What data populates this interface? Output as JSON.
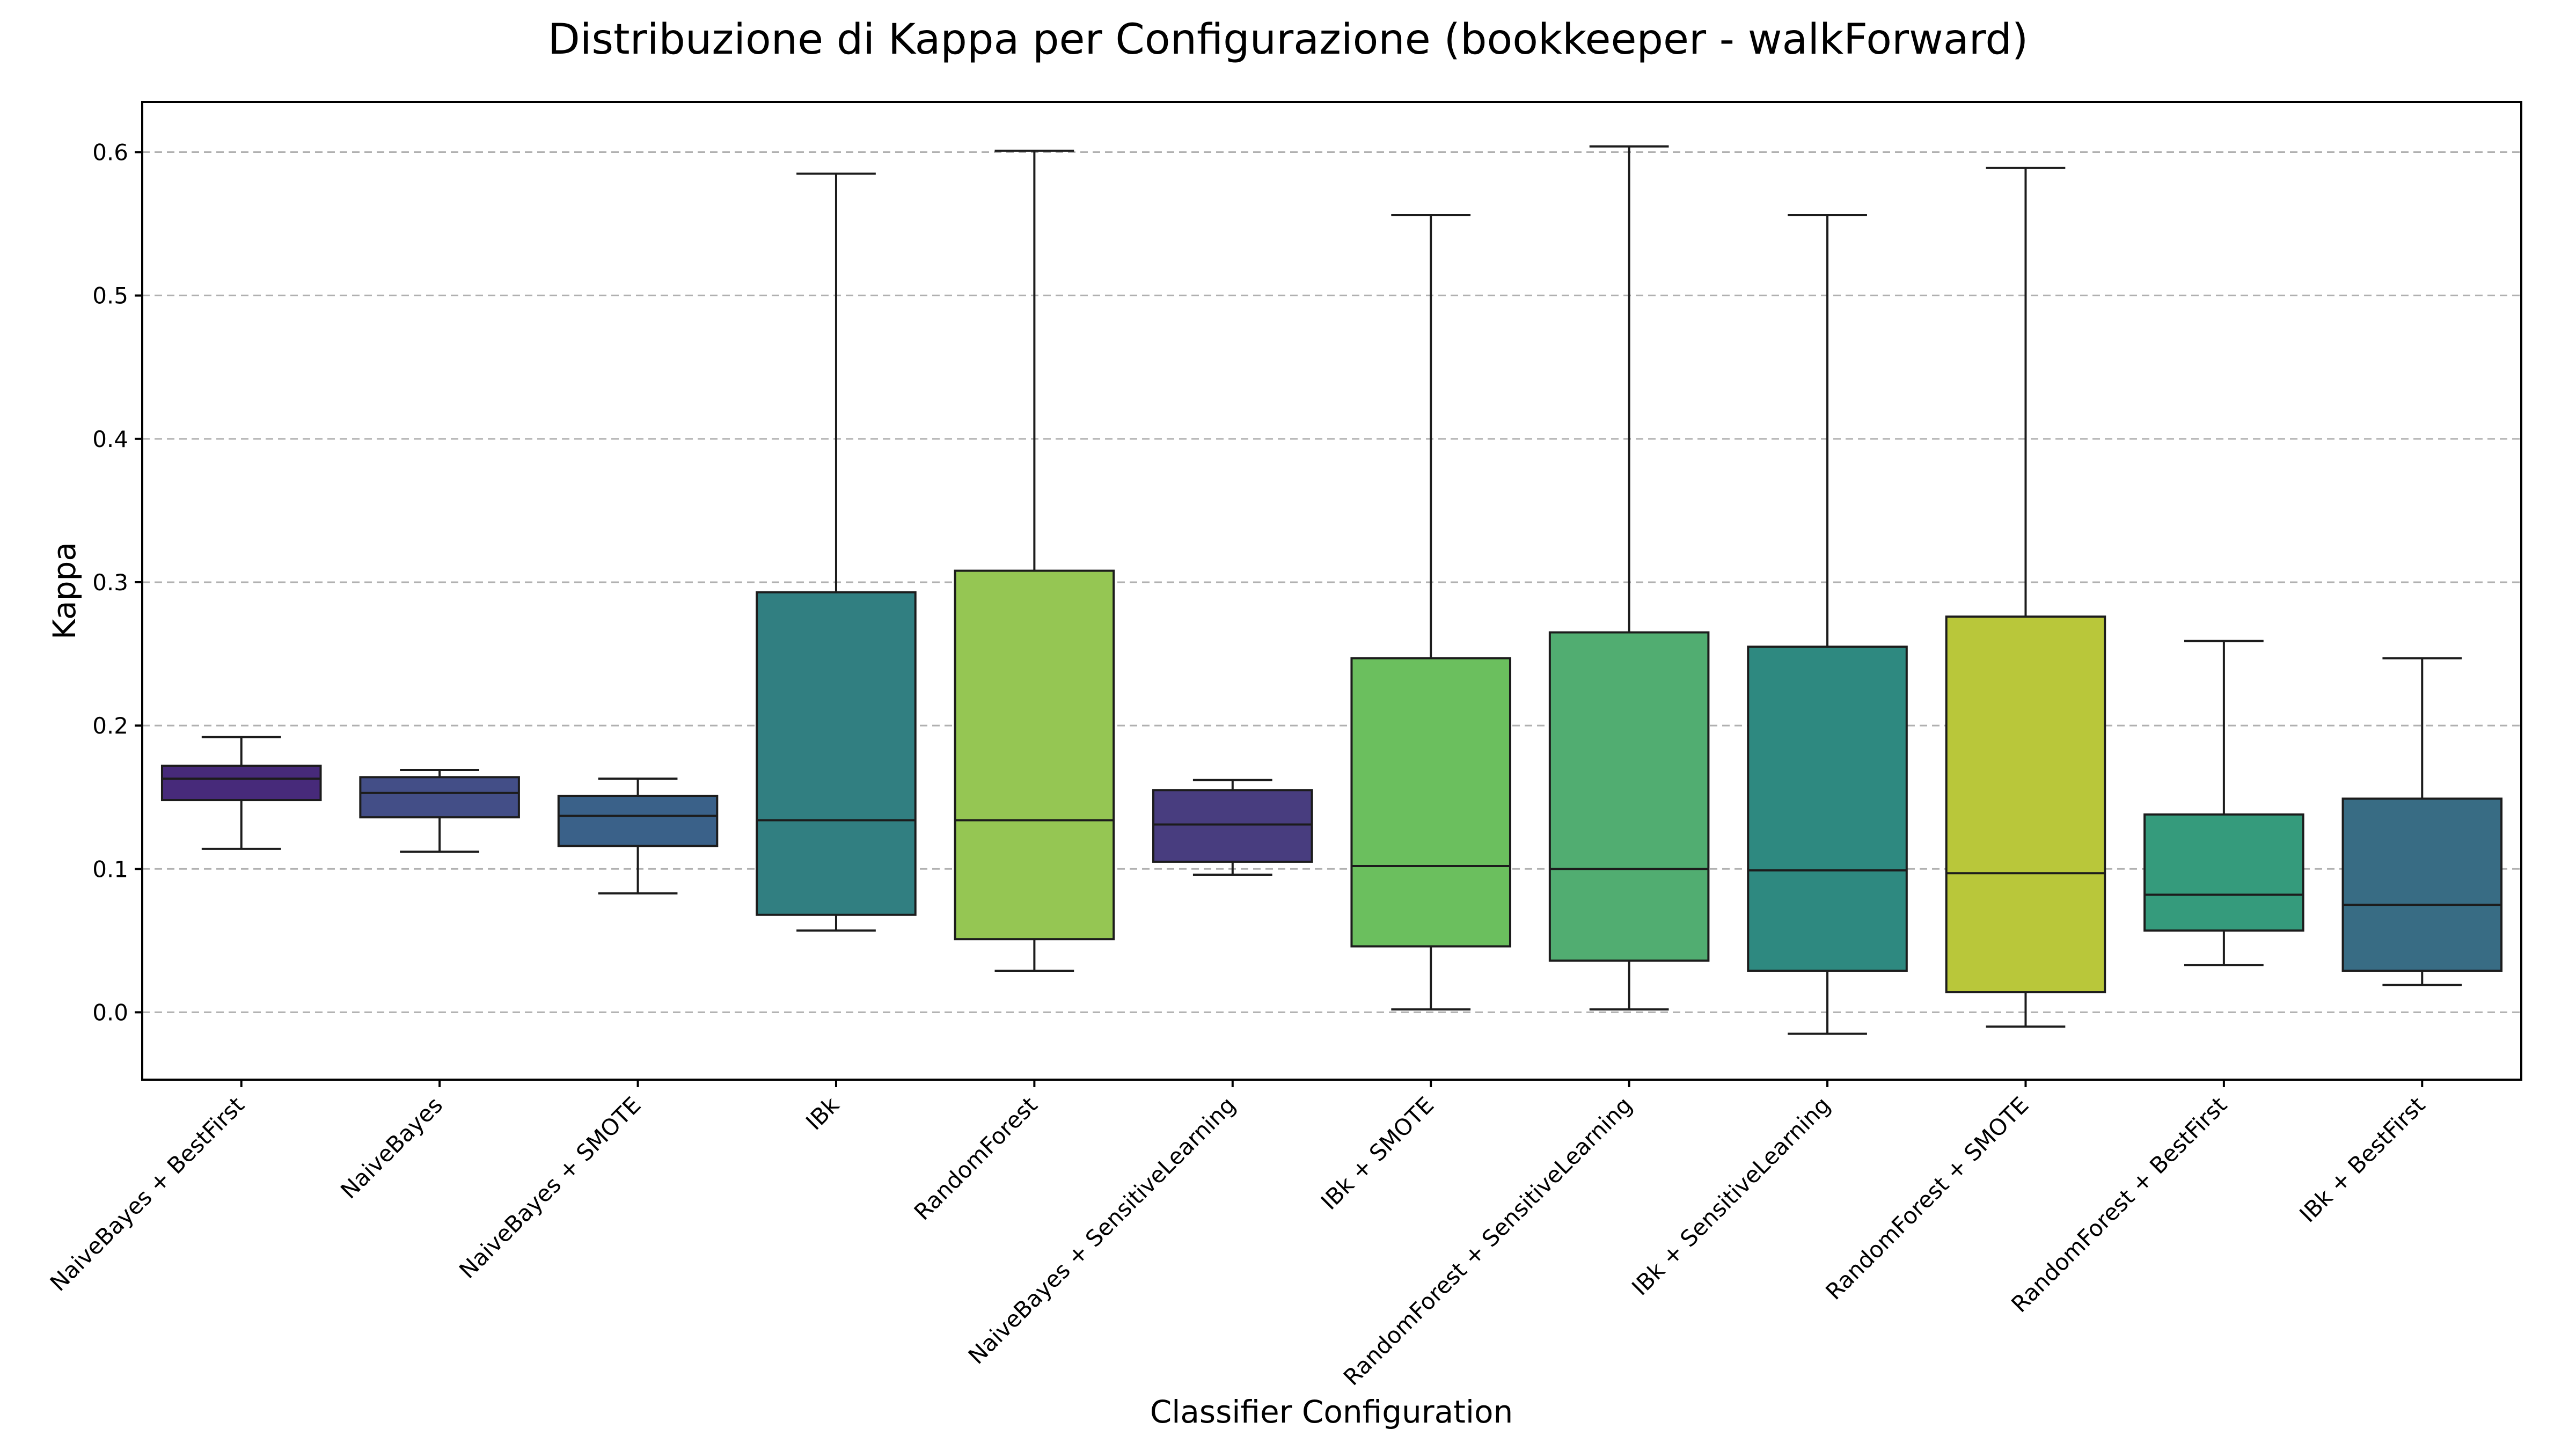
{
  "chart_data": {
    "type": "box",
    "title": "Distribuzione di Kappa per Configurazione (bookkeeper - walkForward)",
    "xlabel": "Classifier Configuration",
    "ylabel": "Kappa",
    "ylim": [
      -0.047,
      0.635
    ],
    "yticks": [
      0.0,
      0.1,
      0.2,
      0.3,
      0.4,
      0.5,
      0.6
    ],
    "ytick_labels": [
      "0.0",
      "0.1",
      "0.2",
      "0.3",
      "0.4",
      "0.5",
      "0.6"
    ],
    "grid": "horizontal dashed",
    "categories": [
      "NaiveBayes + BestFirst",
      "NaiveBayes",
      "NaiveBayes + SMOTE",
      "IBk",
      "RandomForest",
      "NaiveBayes + SensitiveLearning",
      "IBk + SMOTE",
      "RandomForest + SensitiveLearning",
      "IBk + SensitiveLearning",
      "RandomForest + SMOTE",
      "RandomForest + BestFirst",
      "IBk + BestFirst"
    ],
    "boxes": [
      {
        "whisker_low": 0.114,
        "q1": 0.148,
        "median": 0.163,
        "q3": 0.172,
        "whisker_high": 0.192,
        "color": "#472a7a"
      },
      {
        "whisker_low": 0.112,
        "q1": 0.136,
        "median": 0.153,
        "q3": 0.164,
        "whisker_high": 0.169,
        "color": "#434e87"
      },
      {
        "whisker_low": 0.083,
        "q1": 0.116,
        "median": 0.137,
        "q3": 0.151,
        "whisker_high": 0.163,
        "color": "#3a6189"
      },
      {
        "whisker_low": 0.057,
        "q1": 0.068,
        "median": 0.134,
        "q3": 0.293,
        "whisker_high": 0.585,
        "color": "#317f81"
      },
      {
        "whisker_low": 0.029,
        "q1": 0.051,
        "median": 0.134,
        "q3": 0.308,
        "whisker_high": 0.601,
        "color": "#95c653"
      },
      {
        "whisker_low": 0.096,
        "q1": 0.105,
        "median": 0.131,
        "q3": 0.155,
        "whisker_high": 0.162,
        "color": "#483d7f"
      },
      {
        "whisker_low": 0.002,
        "q1": 0.046,
        "median": 0.102,
        "q3": 0.247,
        "whisker_high": 0.556,
        "color": "#6bbf5e"
      },
      {
        "whisker_low": 0.002,
        "q1": 0.036,
        "median": 0.1,
        "q3": 0.265,
        "whisker_high": 0.604,
        "color": "#51ad71"
      },
      {
        "whisker_low": -0.015,
        "q1": 0.029,
        "median": 0.099,
        "q3": 0.255,
        "whisker_high": 0.556,
        "color": "#2e8980"
      },
      {
        "whisker_low": -0.01,
        "q1": 0.014,
        "median": 0.097,
        "q3": 0.276,
        "whisker_high": 0.589,
        "color": "#b9c73a"
      },
      {
        "whisker_low": 0.033,
        "q1": 0.057,
        "median": 0.082,
        "q3": 0.138,
        "whisker_high": 0.259,
        "color": "#359b7c"
      },
      {
        "whisker_low": 0.019,
        "q1": 0.029,
        "median": 0.075,
        "q3": 0.149,
        "whisker_high": 0.247,
        "color": "#386c84"
      }
    ]
  }
}
